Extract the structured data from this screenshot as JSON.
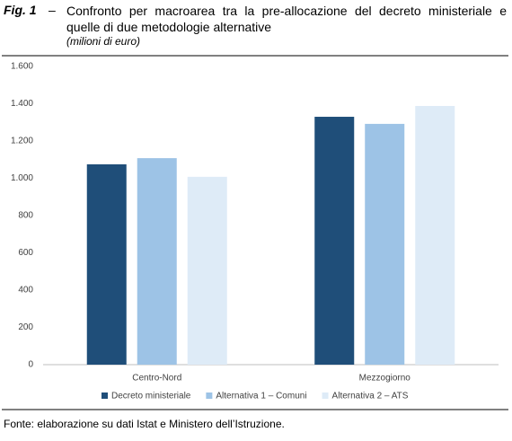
{
  "figure_label": "Fig. 1",
  "figure_separator": "–",
  "chart_data": {
    "type": "bar",
    "title": "Confronto per macroarea tra la pre-allocazione del decreto ministeriale e quelle di due metodologie alternative",
    "subtitle": "(milioni di euro)",
    "categories": [
      "Centro-Nord",
      "Mezzogiorno"
    ],
    "series": [
      {
        "name": "Decreto ministeriale",
        "color": "#1f4e79",
        "values": [
          1075,
          1330
        ]
      },
      {
        "name": "Alternativa 1 – Comuni",
        "color": "#9dc3e6",
        "values": [
          1108,
          1292
        ]
      },
      {
        "name": "Alternativa 2 – ATS",
        "color": "#deebf7",
        "values": [
          1008,
          1388
        ]
      }
    ],
    "ylim": [
      0,
      1600
    ],
    "yticks": [
      0,
      200,
      400,
      600,
      800,
      {
        "value": 1000,
        "label": "1.000"
      },
      {
        "value": 1200,
        "label": "1.200"
      },
      {
        "value": 1400,
        "label": "1.400"
      },
      {
        "value": 1600,
        "label": "1.600"
      }
    ],
    "grid": false,
    "legend": "bottom"
  },
  "source": "Fonte: elaborazione su dati Istat e Ministero dell’Istruzione."
}
